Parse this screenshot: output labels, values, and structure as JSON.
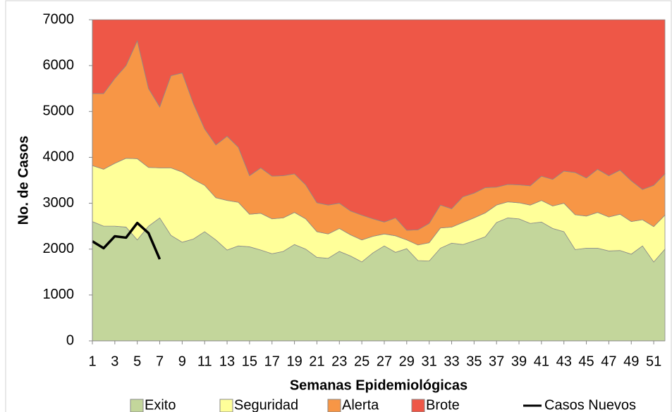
{
  "chart_data": {
    "type": "area",
    "x_label": "Semanas Epidemiológicas",
    "y_label": "No. de Casos",
    "x": [
      1,
      2,
      3,
      4,
      5,
      6,
      7,
      8,
      9,
      10,
      11,
      12,
      13,
      14,
      15,
      16,
      17,
      18,
      19,
      20,
      21,
      22,
      23,
      24,
      25,
      26,
      27,
      28,
      29,
      30,
      31,
      32,
      33,
      34,
      35,
      36,
      37,
      38,
      39,
      40,
      41,
      42,
      43,
      44,
      45,
      46,
      47,
      48,
      49,
      50,
      51,
      52
    ],
    "xlim": [
      1,
      52
    ],
    "xticks": [
      1,
      3,
      5,
      7,
      9,
      11,
      13,
      15,
      17,
      19,
      21,
      23,
      25,
      27,
      29,
      31,
      33,
      35,
      37,
      39,
      41,
      43,
      45,
      47,
      49,
      51
    ],
    "ylim": [
      0,
      7000
    ],
    "yticks": [
      0,
      1000,
      2000,
      3000,
      4000,
      5000,
      6000,
      7000
    ],
    "legend": "bottom",
    "series": [
      {
        "name": "Exito",
        "color": "#c3d69b",
        "values": [
          2600,
          2500,
          2500,
          2480,
          2200,
          2500,
          2680,
          2300,
          2150,
          2220,
          2380,
          2200,
          1980,
          2070,
          2050,
          1980,
          1900,
          1950,
          2100,
          2000,
          1820,
          1800,
          1950,
          1850,
          1720,
          1920,
          2070,
          1930,
          2010,
          1750,
          1740,
          2020,
          2130,
          2100,
          2180,
          2270,
          2580,
          2680,
          2660,
          2560,
          2590,
          2450,
          2380,
          1990,
          2020,
          2020,
          1960,
          1970,
          1890,
          2070,
          1720,
          2000
        ]
      },
      {
        "name": "Seguridad",
        "color": "#ffff99",
        "values": [
          1220,
          1240,
          1370,
          1500,
          1770,
          1280,
          1090,
          1470,
          1530,
          1300,
          1010,
          920,
          1080,
          950,
          710,
          800,
          760,
          730,
          700,
          660,
          560,
          530,
          500,
          460,
          480,
          360,
          260,
          360,
          190,
          340,
          400,
          440,
          350,
          480,
          500,
          520,
          380,
          350,
          350,
          400,
          470,
          490,
          620,
          760,
          700,
          780,
          740,
          790,
          710,
          570,
          770,
          740
        ]
      },
      {
        "name": "Alerta",
        "color": "#f79646",
        "values": [
          1570,
          1650,
          1850,
          2020,
          2570,
          1720,
          1330,
          2010,
          2160,
          1650,
          1230,
          1150,
          1400,
          1200,
          840,
          990,
          930,
          920,
          840,
          740,
          630,
          630,
          550,
          520,
          540,
          380,
          260,
          390,
          210,
          330,
          420,
          500,
          400,
          560,
          540,
          550,
          390,
          380,
          390,
          420,
          530,
          580,
          700,
          920,
          830,
          940,
          900,
          960,
          890,
          660,
          900,
          900
        ]
      },
      {
        "name": "Brote",
        "color": "#ee5747",
        "values": [
          1610,
          1610,
          1280,
          1000,
          460,
          1500,
          1900,
          1220,
          1160,
          1830,
          2380,
          2730,
          2540,
          2780,
          3400,
          3230,
          3410,
          3400,
          3360,
          3600,
          3990,
          4040,
          4000,
          4170,
          4260,
          4340,
          4410,
          4320,
          4590,
          4580,
          4440,
          4040,
          4120,
          3860,
          3780,
          3660,
          3650,
          3590,
          3600,
          3620,
          3410,
          3480,
          3300,
          3330,
          3450,
          3260,
          3400,
          3280,
          3510,
          3700,
          3610,
          3360
        ]
      },
      {
        "name": "Casos Nuevos",
        "type": "line",
        "color": "#000000",
        "values": [
          2170,
          2020,
          2280,
          2250,
          2570,
          2350,
          1780,
          null,
          null,
          null,
          null,
          null,
          null,
          null,
          null,
          null,
          null,
          null,
          null,
          null,
          null,
          null,
          null,
          null,
          null,
          null,
          null,
          null,
          null,
          null,
          null,
          null,
          null,
          null,
          null,
          null,
          null,
          null,
          null,
          null,
          null,
          null,
          null,
          null,
          null,
          null,
          null,
          null,
          null,
          null,
          null,
          null
        ]
      }
    ]
  }
}
